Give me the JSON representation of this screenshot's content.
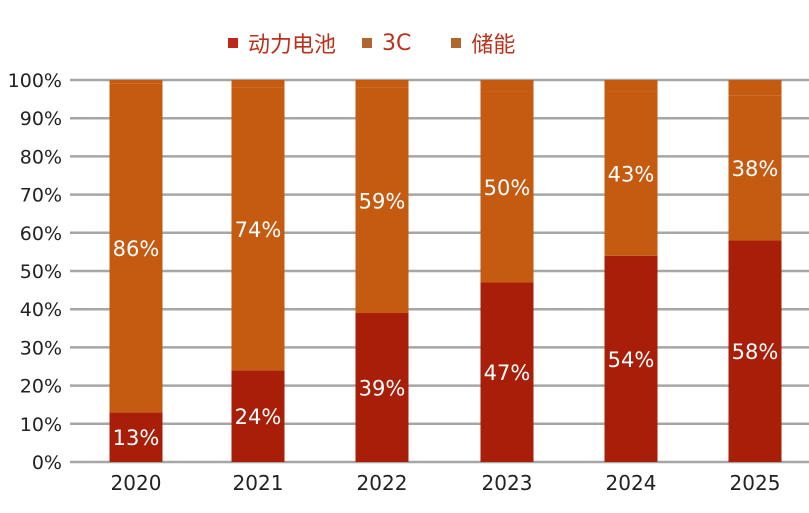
{
  "chart_data": {
    "type": "bar",
    "stacked": true,
    "categories": [
      "2020",
      "2021",
      "2022",
      "2023",
      "2024",
      "2025"
    ],
    "series": [
      {
        "name": "动力电池",
        "values": [
          13,
          24,
          39,
          47,
          54,
          58
        ],
        "color": "#a81e08",
        "labels": [
          "13%",
          "24%",
          "39%",
          "47%",
          "54%",
          "58%"
        ]
      },
      {
        "name": "3C",
        "values": [
          86,
          74,
          59,
          50,
          43,
          38
        ],
        "color": "#c55a11",
        "labels": [
          "86%",
          "74%",
          "59%",
          "50%",
          "43%",
          "38%"
        ]
      },
      {
        "name": "储能",
        "values": [
          1,
          2,
          2,
          3,
          3,
          4
        ],
        "color": "#c55a11"
      }
    ],
    "legend_colors": [
      "#c0261a",
      "#b0662e",
      "#b0662e"
    ],
    "yticks": [
      "0%",
      "10%",
      "20%",
      "30%",
      "40%",
      "50%",
      "60%",
      "70%",
      "80%",
      "90%",
      "100%"
    ],
    "ylim": [
      0,
      100
    ],
    "grid": true,
    "legend_position": "top"
  }
}
